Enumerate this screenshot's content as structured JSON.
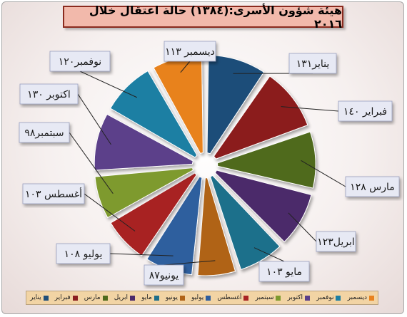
{
  "chart_data": {
    "type": "pie",
    "title": "هيئة شؤون الأسرى:(١٣٨٤) حالة اعتقال خلال ٢٠١٦",
    "categories": [
      "يناير",
      "فبراير",
      "مارس",
      "ابريل",
      "مايو",
      "يونيو",
      "يوليو",
      "أغسطس",
      "سبتمبر",
      "اكتوبر",
      "نوفمبر",
      "ديسمبر"
    ],
    "values": [
      131,
      140,
      128,
      123,
      103,
      87,
      108,
      103,
      98,
      130,
      120,
      113
    ],
    "data_labels": [
      "يناير١٣١",
      "فبراير ١٤٠",
      "مارس ١٢٨",
      "ابريل١٢٣",
      "مايو ١٠٣",
      "يونيو٨٧",
      "يوليو ١٠٨",
      "أغسطس ١٠٣",
      "سبتمبر٩٨",
      "اكتوبر ١٣٠",
      "نوفمبر١٢٠",
      "ديسمبر ١١٣"
    ],
    "colors": [
      "#1f4e79",
      "#8b1f1f",
      "#4f6a1c",
      "#4b2a6b",
      "#1f6f8b",
      "#b06317",
      "#2e5e9e",
      "#a82424",
      "#7e9a2e",
      "#5b3f8a",
      "#1d7fa3",
      "#e8821f"
    ],
    "legend_position": "bottom"
  }
}
